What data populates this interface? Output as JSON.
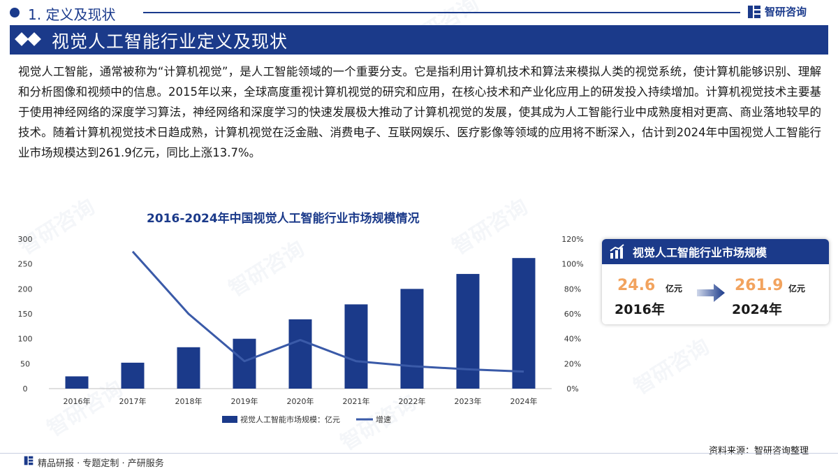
{
  "header": {
    "section_title": "1. 定义及现状",
    "brand": "智研咨询"
  },
  "banner": {
    "title": "视觉人工智能行业定义及现状"
  },
  "body": {
    "paragraph": "视觉人工智能，通常被称为“计算机视觉”，是人工智能领域的一个重要分支。它是指利用计算机技术和算法来模拟人类的视觉系统，使计算机能够识别、理解和分析图像和视频中的信息。2015年以来，全球高度重视计算机视觉的研究和应用，在核心技术和产业化应用上的研发投入持续增加。计算机视觉技术主要基于使用神经网络的深度学习算法，神经网络和深度学习的快速发展极大推动了计算机视觉的发展，使其成为人工智能行业中成熟度相对更高、商业落地较早的技术。随着计算机视觉技术日趋成熟，计算机视觉在泛金融、消费电子、互联网娱乐、医疗影像等领域的应用将不断深入，估计到2024年中国视觉人工智能行业市场规模达到261.9亿元，同比上涨13.7%。"
  },
  "chart_data": {
    "type": "bar",
    "title": "2016-2024年中国视觉人工智能行业市场规模情况",
    "categories": [
      "2016年",
      "2017年",
      "2018年",
      "2019年",
      "2020年",
      "2021年",
      "2022年",
      "2023年",
      "2024年"
    ],
    "series": [
      {
        "name": "视觉人工智能市场规模：亿元",
        "type": "bar",
        "axis": "left",
        "values": [
          24.6,
          52,
          83,
          100,
          139,
          169,
          200,
          230,
          261.9
        ]
      },
      {
        "name": "增速",
        "type": "line",
        "axis": "right",
        "values": [
          null,
          110,
          60,
          22,
          39,
          22,
          18,
          15.5,
          13.7
        ]
      }
    ],
    "y_left": {
      "ylim": [
        0,
        300
      ],
      "ticks": [
        "0",
        "50",
        "100",
        "150",
        "200",
        "250",
        "300"
      ]
    },
    "y_right": {
      "ylim": [
        0,
        120
      ],
      "ticks": [
        "0%",
        "20%",
        "40%",
        "60%",
        "80%",
        "100%",
        "120%"
      ]
    },
    "legend_position": "bottom",
    "grid": false,
    "colors": {
      "bar": "#1b3a8a",
      "line": "#3a5aa8"
    }
  },
  "stat_box": {
    "title": "视觉人工智能行业市场规模",
    "start_value": "24.6",
    "start_unit": "亿元",
    "start_year": "2016年",
    "end_value": "261.9",
    "end_unit": "亿元",
    "end_year": "2024年"
  },
  "footer": {
    "source": "资料来源：智研咨询整理",
    "tagline": "精品研报 · 专题定制 · 产研服务"
  },
  "watermark": "智研咨询",
  "colors": {
    "brand_blue": "#1b3a8a",
    "accent_orange": "#f2a35e"
  }
}
